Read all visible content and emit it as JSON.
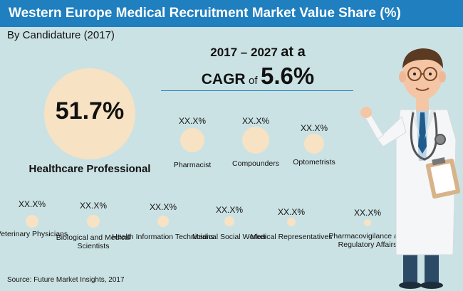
{
  "title": "Western Europe Medical Recruitment Market Value Share (%)",
  "subtitle": "By Candidature (2017)",
  "cagr": {
    "years": "2017 – 2027",
    "at_a": "at a",
    "cagr_label": "CAGR",
    "of": "of",
    "rate": "5.6%"
  },
  "source": "Source: Future Market Insights, 2017",
  "colors": {
    "header": "#1f7fbf",
    "background": "#cbe2e4",
    "bubble": "#f7e2c3"
  },
  "chart_data": {
    "type": "bubble",
    "title": "Western Europe Medical Recruitment Market Value Share (%)",
    "subtitle": "By Candidature (2017)",
    "unit": "%",
    "highlight": {
      "label": "Healthcare Professional",
      "value": 51.7,
      "display": "51.7%"
    },
    "categories": [
      {
        "label": "Pharmacist",
        "display": "XX.X%"
      },
      {
        "label": "Compounders",
        "display": "XX.X%"
      },
      {
        "label": "Optometrists",
        "display": "XX.X%"
      },
      {
        "label": "Veterinary Physicians",
        "display": "XX.X%"
      },
      {
        "label": "Biological and Medical Scientists",
        "display": "XX.X%"
      },
      {
        "label": "Health Information Technicians",
        "display": "XX.X%"
      },
      {
        "label": "Medical Social Worker",
        "display": "XX.X%"
      },
      {
        "label": "Medical Representatives",
        "display": "XX.X%"
      },
      {
        "label": "Pharmacovigilance and Regulatory Affairs",
        "display": "XX.X%"
      }
    ]
  }
}
